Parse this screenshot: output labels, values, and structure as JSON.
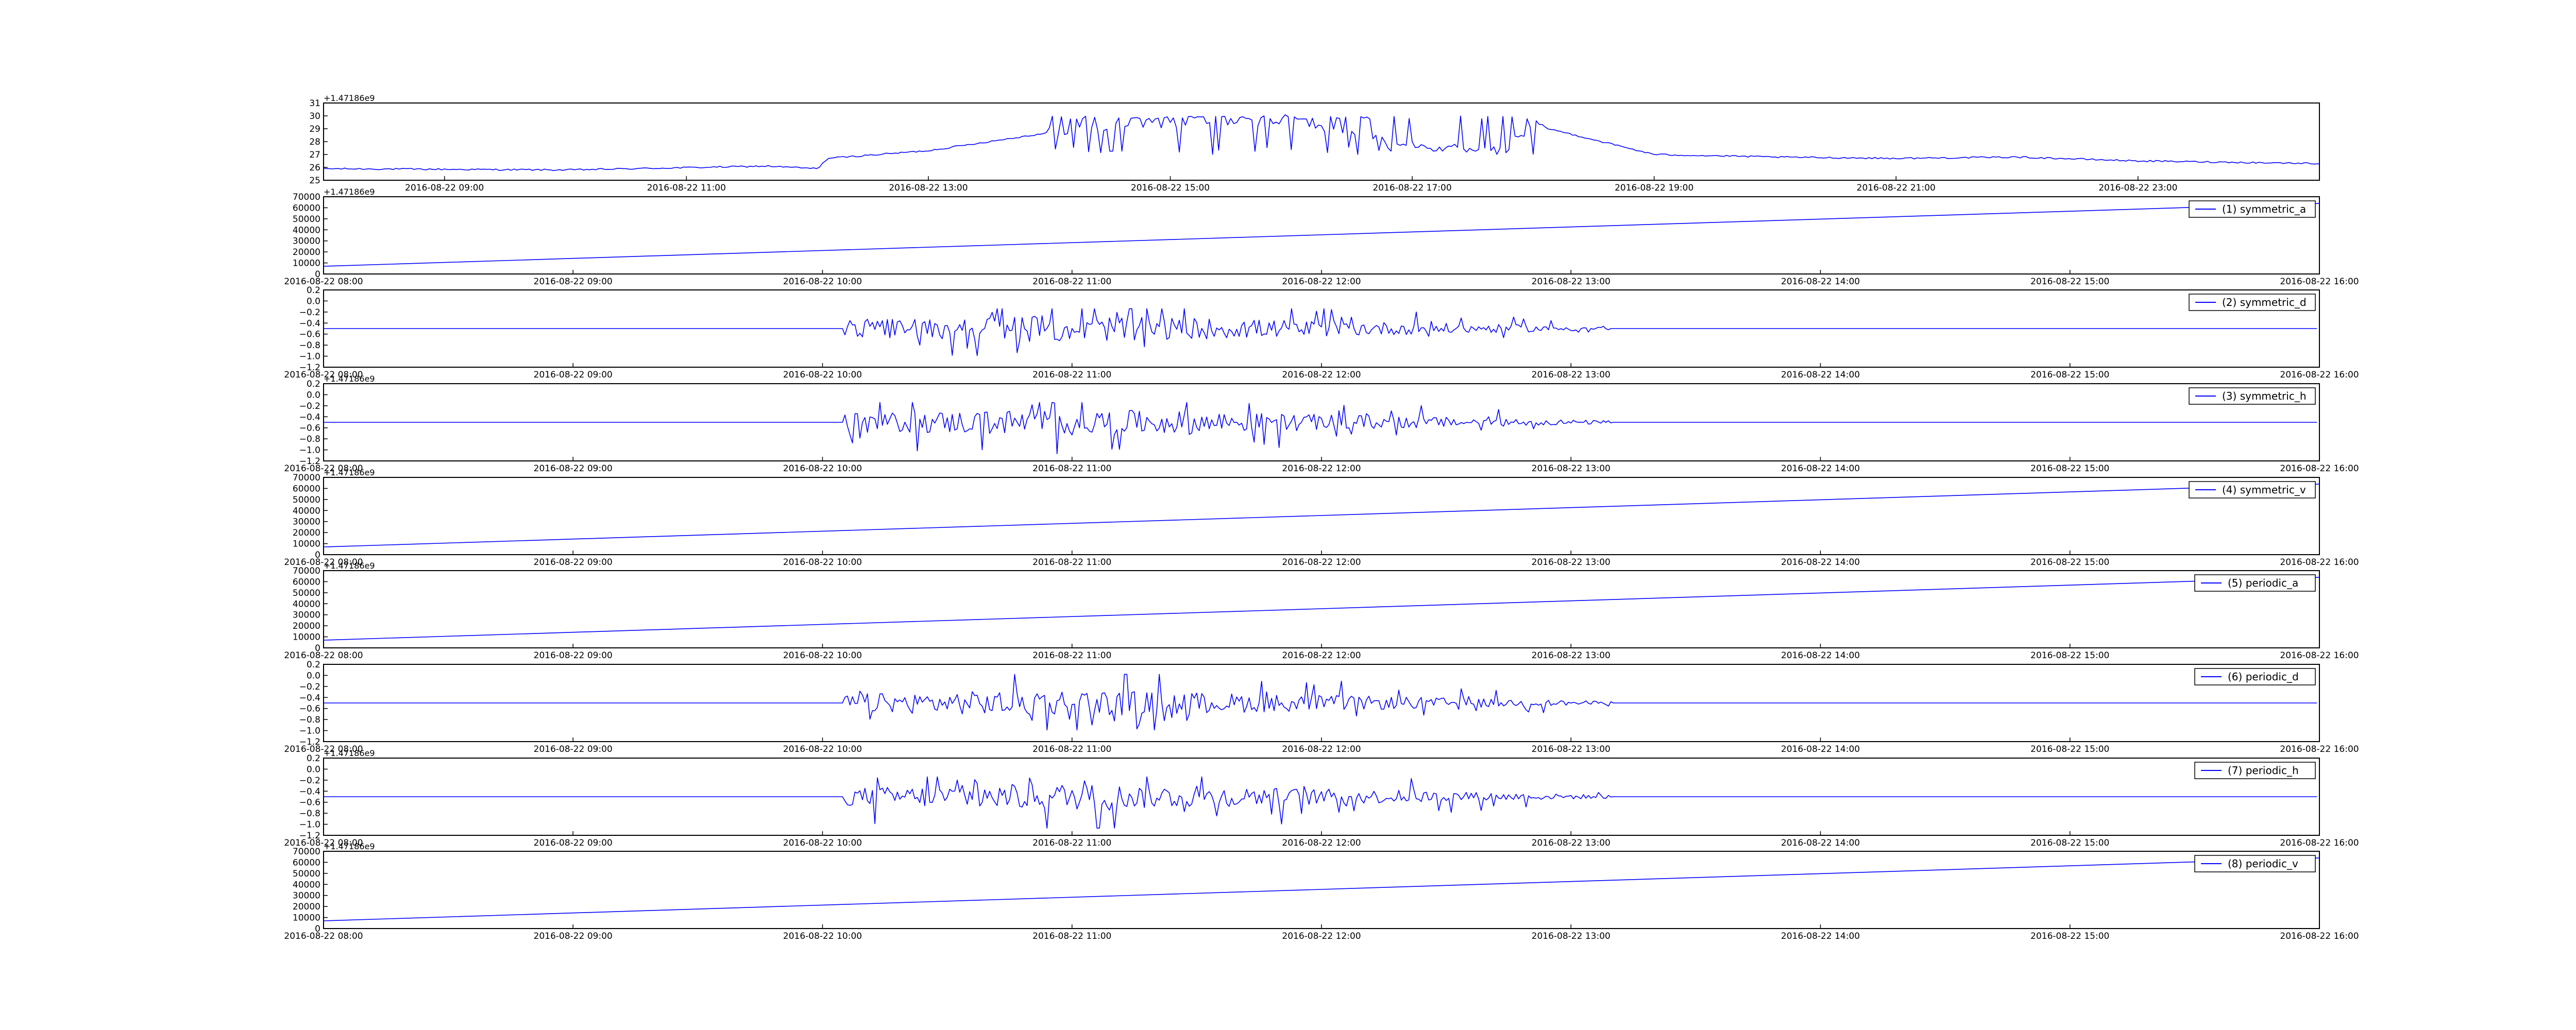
{
  "chart_data": [
    {
      "type": "line",
      "title": "",
      "xlabel": "",
      "ylabel": "",
      "offset_text": "+1.47186e9",
      "xlim": [
        "2016-08-22 08:00",
        "2016-08-23 00:30"
      ],
      "ylim": [
        25,
        31
      ],
      "yticks": [
        "25",
        "26",
        "27",
        "28",
        "29",
        "30",
        "31"
      ],
      "xticks": [
        "2016-08-22 09:00",
        "2016-08-22 11:00",
        "2016-08-22 13:00",
        "2016-08-22 15:00",
        "2016-08-22 17:00",
        "2016-08-22 19:00",
        "2016-08-22 21:00",
        "2016-08-22 23:00"
      ],
      "series": [
        {
          "x": [
            "2016-08-22 08:00",
            "2016-08-22 10:00",
            "2016-08-22 11:40",
            "2016-08-22 12:05",
            "2016-08-22 12:10",
            "2016-08-22 13:00",
            "2016-08-22 13:30",
            "2016-08-22 14:00",
            "2016-08-22 14:30",
            "2016-08-22 15:00",
            "2016-08-22 16:00",
            "2016-08-22 17:00",
            "2016-08-22 17:45",
            "2016-08-22 18:00",
            "2016-08-22 19:00",
            "2016-08-22 20:00",
            "2016-08-22 21:00",
            "2016-08-22 22:00",
            "2016-08-22 23:00",
            "2016-08-23 00:30"
          ],
          "values": [
            25.9,
            25.8,
            26.1,
            25.9,
            26.7,
            27.3,
            28.0,
            28.7,
            29.2,
            29.5,
            29.7,
            27.6,
            27.3,
            29.3,
            27.0,
            26.8,
            26.7,
            26.8,
            26.5,
            26.3
          ],
          "noisy_segment": [
            "2016-08-22 14:00",
            "2016-08-22 18:05"
          ],
          "noise_range": [
            27.0,
            30.0
          ]
        }
      ]
    },
    {
      "type": "line",
      "title": "",
      "offset_text": "+1.47186e9",
      "xlim": [
        "2016-08-22 08:00",
        "2016-08-22 16:00"
      ],
      "ylim": [
        0,
        70000
      ],
      "yticks": [
        "0",
        "10000",
        "20000",
        "30000",
        "40000",
        "50000",
        "60000",
        "70000"
      ],
      "xticks": [
        "2016-08-22 08:00",
        "2016-08-22 09:00",
        "2016-08-22 10:00",
        "2016-08-22 11:00",
        "2016-08-22 12:00",
        "2016-08-22 13:00",
        "2016-08-22 14:00",
        "2016-08-22 15:00",
        "2016-08-22 16:00"
      ],
      "series": [
        {
          "name": "(1) symmetric_a",
          "x": [
            "2016-08-22 08:00",
            "2016-08-22 16:00"
          ],
          "values": [
            7000,
            64000
          ]
        }
      ]
    },
    {
      "type": "line",
      "title": "",
      "xlim": [
        "2016-08-22 08:00",
        "2016-08-22 16:00"
      ],
      "ylim": [
        -1.2,
        0.2
      ],
      "yticks": [
        "−1.2",
        "−1.0",
        "−0.8",
        "−0.6",
        "−0.4",
        "−0.2",
        "0.0",
        "0.2"
      ],
      "xticks": [
        "2016-08-22 08:00",
        "2016-08-22 09:00",
        "2016-08-22 10:00",
        "2016-08-22 11:00",
        "2016-08-22 12:00",
        "2016-08-22 13:00",
        "2016-08-22 14:00",
        "2016-08-22 15:00",
        "2016-08-22 16:00"
      ],
      "series": [
        {
          "name": "(2) symmetric_d",
          "baseline": -0.5,
          "noisy_segment": [
            "2016-08-22 10:05",
            "2016-08-22 13:10"
          ],
          "noise_range": [
            -0.99,
            -0.14
          ]
        }
      ]
    },
    {
      "type": "line",
      "title": "",
      "offset_text": "+1.47186e9",
      "xlim": [
        "2016-08-22 08:00",
        "2016-08-22 16:00"
      ],
      "ylim": [
        -1.2,
        0.2
      ],
      "yticks": [
        "−1.2",
        "−1.0",
        "−0.8",
        "−0.6",
        "−0.4",
        "−0.2",
        "0.0",
        "0.2"
      ],
      "xticks": [
        "2016-08-22 08:00",
        "2016-08-22 09:00",
        "2016-08-22 10:00",
        "2016-08-22 11:00",
        "2016-08-22 12:00",
        "2016-08-22 13:00",
        "2016-08-22 14:00",
        "2016-08-22 15:00",
        "2016-08-22 16:00"
      ],
      "series": [
        {
          "name": "(3) symmetric_h",
          "baseline": -0.5,
          "noisy_segment": [
            "2016-08-22 10:05",
            "2016-08-22 13:10"
          ],
          "noise_range": [
            -1.07,
            -0.14
          ]
        }
      ]
    },
    {
      "type": "line",
      "title": "",
      "offset_text": "+1.47186e9",
      "xlim": [
        "2016-08-22 08:00",
        "2016-08-22 16:00"
      ],
      "ylim": [
        0,
        70000
      ],
      "yticks": [
        "0",
        "10000",
        "20000",
        "30000",
        "40000",
        "50000",
        "60000",
        "70000"
      ],
      "xticks": [
        "2016-08-22 08:00",
        "2016-08-22 09:00",
        "2016-08-22 10:00",
        "2016-08-22 11:00",
        "2016-08-22 12:00",
        "2016-08-22 13:00",
        "2016-08-22 14:00",
        "2016-08-22 15:00",
        "2016-08-22 16:00"
      ],
      "series": [
        {
          "name": "(4) symmetric_v",
          "x": [
            "2016-08-22 08:00",
            "2016-08-22 16:00"
          ],
          "values": [
            7000,
            64000
          ]
        }
      ]
    },
    {
      "type": "line",
      "title": "",
      "offset_text": "+1.47186e9",
      "xlim": [
        "2016-08-22 08:00",
        "2016-08-22 16:00"
      ],
      "ylim": [
        0,
        70000
      ],
      "yticks": [
        "0",
        "10000",
        "20000",
        "30000",
        "40000",
        "50000",
        "60000",
        "70000"
      ],
      "xticks": [
        "2016-08-22 08:00",
        "2016-08-22 09:00",
        "2016-08-22 10:00",
        "2016-08-22 11:00",
        "2016-08-22 12:00",
        "2016-08-22 13:00",
        "2016-08-22 14:00",
        "2016-08-22 15:00",
        "2016-08-22 16:00"
      ],
      "series": [
        {
          "name": "(5) periodic_a",
          "x": [
            "2016-08-22 08:00",
            "2016-08-22 16:00"
          ],
          "values": [
            7000,
            64000
          ]
        }
      ]
    },
    {
      "type": "line",
      "title": "",
      "xlim": [
        "2016-08-22 08:00",
        "2016-08-22 16:00"
      ],
      "ylim": [
        -1.2,
        0.2
      ],
      "yticks": [
        "−1.2",
        "−1.0",
        "−0.8",
        "−0.6",
        "−0.4",
        "−0.2",
        "0.0",
        "0.2"
      ],
      "xticks": [
        "2016-08-22 08:00",
        "2016-08-22 09:00",
        "2016-08-22 10:00",
        "2016-08-22 11:00",
        "2016-08-22 12:00",
        "2016-08-22 13:00",
        "2016-08-22 14:00",
        "2016-08-22 15:00",
        "2016-08-22 16:00"
      ],
      "series": [
        {
          "name": "(6) periodic_d",
          "baseline": -0.5,
          "noisy_segment": [
            "2016-08-22 10:05",
            "2016-08-22 13:10"
          ],
          "noise_range": [
            -0.99,
            0.02
          ]
        }
      ]
    },
    {
      "type": "line",
      "title": "",
      "offset_text": "+1.47186e9",
      "xlim": [
        "2016-08-22 08:00",
        "2016-08-22 16:00"
      ],
      "ylim": [
        -1.2,
        0.2
      ],
      "yticks": [
        "−1.2",
        "−1.0",
        "−0.8",
        "−0.6",
        "−0.4",
        "−0.2",
        "0.0",
        "0.2"
      ],
      "xticks": [
        "2016-08-22 08:00",
        "2016-08-22 09:00",
        "2016-08-22 10:00",
        "2016-08-22 11:00",
        "2016-08-22 12:00",
        "2016-08-22 13:00",
        "2016-08-22 14:00",
        "2016-08-22 15:00",
        "2016-08-22 16:00"
      ],
      "series": [
        {
          "name": "(7) periodic_h",
          "baseline": -0.5,
          "noisy_segment": [
            "2016-08-22 10:05",
            "2016-08-22 13:10"
          ],
          "noise_range": [
            -1.07,
            -0.14
          ]
        }
      ]
    },
    {
      "type": "line",
      "title": "",
      "offset_text": "+1.47186e9",
      "xlim": [
        "2016-08-22 08:00",
        "2016-08-22 16:00"
      ],
      "ylim": [
        0,
        70000
      ],
      "yticks": [
        "0",
        "10000",
        "20000",
        "30000",
        "40000",
        "50000",
        "60000",
        "70000"
      ],
      "xticks": [
        "2016-08-22 08:00",
        "2016-08-22 09:00",
        "2016-08-22 10:00",
        "2016-08-22 11:00",
        "2016-08-22 12:00",
        "2016-08-22 13:00",
        "2016-08-22 14:00",
        "2016-08-22 15:00",
        "2016-08-22 16:00"
      ],
      "series": [
        {
          "name": "(8) periodic_v",
          "x": [
            "2016-08-22 08:00",
            "2016-08-22 16:00"
          ],
          "values": [
            7000,
            64000
          ]
        }
      ]
    }
  ],
  "colors": {
    "line": "#0000ff",
    "axes": "#000000",
    "background": "#ffffff"
  }
}
